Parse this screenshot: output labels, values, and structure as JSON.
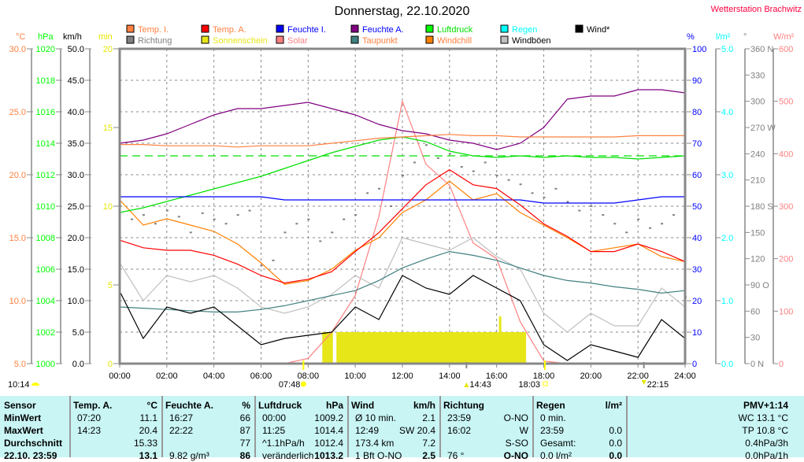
{
  "header": {
    "title": "Donnerstag, 22.10.2020",
    "station": "Wetterstation Brachwitz"
  },
  "legend": [
    {
      "label": "Temp. I.",
      "color": "#ff8040",
      "text_color": "#ff8040"
    },
    {
      "label": "Temp. A.",
      "color": "#ff0000",
      "text_color": "#ff8040"
    },
    {
      "label": "Feuchte I.",
      "color": "#0000ff",
      "text_color": "#0000ff"
    },
    {
      "label": "Feuchte A.",
      "color": "#800080",
      "text_color": "#0000ff"
    },
    {
      "label": "Luftdruck",
      "color": "#00ff00",
      "text_color": "#00e000"
    },
    {
      "label": "Regen",
      "color": "#00ffff",
      "text_color": "#00ffff"
    },
    {
      "label": "Wind*",
      "color": "#000000",
      "text_color": "#000000"
    },
    {
      "label": "Richtung",
      "color": "#808080",
      "text_color": "#808080"
    },
    {
      "label": "Sonnenschein",
      "color": "#e6e619",
      "text_color": "#e6e619"
    },
    {
      "label": "Solar",
      "color": "#ff8080",
      "text_color": "#ff8080"
    },
    {
      "label": "Taupunkt",
      "color": "#408080",
      "text_color": "#ff8040"
    },
    {
      "label": "Windchill",
      "color": "#ff8000",
      "text_color": "#ff8040"
    },
    {
      "label": "Windböen",
      "color": "#c0c0c0",
      "text_color": "#000000"
    }
  ],
  "markers": {
    "day_length": "10:14",
    "sunrise": "07:48",
    "moonrise": "14:43",
    "sunset": "18:03",
    "moonset": "22:15"
  },
  "chart_data": {
    "type": "line",
    "title": "Donnerstag, 22.10.2020",
    "x_ticks": [
      "00:00",
      "02:00",
      "04:00",
      "06:00",
      "08:00",
      "10:00",
      "12:00",
      "14:00",
      "16:00",
      "18:00",
      "20:00",
      "22:00",
      "24:00"
    ],
    "axes": {
      "celsius": {
        "unit": "°C",
        "ticks": [
          "30.0",
          "25.0",
          "20.0",
          "15.0",
          "10.0",
          "5.0"
        ],
        "range": [
          5,
          30
        ],
        "color": "#ff8040"
      },
      "hpa": {
        "unit": "hPa",
        "ticks": [
          "1020",
          "1018",
          "1016",
          "1014",
          "1012",
          "1010",
          "1008",
          "1006",
          "1004",
          "1002",
          "1000"
        ],
        "range": [
          1000,
          1020
        ],
        "color": "#00ff00"
      },
      "kmh": {
        "unit": "km/h",
        "ticks": [
          "50.0",
          "45.0",
          "40.0",
          "35.0",
          "30.0",
          "25.0",
          "20.0",
          "15.0",
          "10.0",
          "5.0",
          "0.0"
        ],
        "range": [
          0,
          50
        ],
        "color": "#000000"
      },
      "min": {
        "unit": "min",
        "ticks": [
          "20",
          "15",
          "10",
          "5",
          "0"
        ],
        "range": [
          0,
          20
        ],
        "color": "#e6e600"
      },
      "percent": {
        "unit": "%",
        "ticks": [
          "100",
          "90",
          "80",
          "70",
          "60",
          "50",
          "40",
          "30",
          "20",
          "10",
          "0"
        ],
        "range": [
          0,
          100
        ],
        "color": "#0000ff"
      },
      "rain": {
        "unit": "l/m²",
        "ticks": [
          "5.0",
          "4.0",
          "3.0",
          "2.0",
          "1.0",
          "0.0"
        ],
        "range": [
          0,
          5
        ],
        "color": "#00ffff"
      },
      "degree": {
        "unit": "°",
        "ticks": [
          "360 N",
          "330",
          "300",
          "270 W",
          "240",
          "210",
          "180 S",
          "150",
          "120",
          "90  O",
          "60",
          "30",
          "0   N"
        ],
        "range": [
          0,
          360
        ],
        "color": "#808080"
      },
      "solar": {
        "unit": "W/m²",
        "ticks": [
          "600",
          "500",
          "400",
          "300",
          "200",
          "100",
          "0"
        ],
        "range": [
          0,
          600
        ],
        "color": "#ff8080"
      }
    },
    "hourly_x": [
      0,
      1,
      2,
      3,
      4,
      5,
      6,
      7,
      8,
      9,
      10,
      11,
      12,
      13,
      14,
      15,
      16,
      17,
      18,
      19,
      20,
      21,
      22,
      23,
      24
    ],
    "series": [
      {
        "name": "Temp. I.",
        "axis": "celsius",
        "color": "#ff8040",
        "values": [
          22.4,
          22.4,
          22.3,
          22.3,
          22.3,
          22.2,
          22.3,
          22.3,
          22.3,
          22.5,
          22.7,
          22.9,
          23.0,
          23.1,
          23.2,
          23.1,
          23.1,
          23.0,
          23.0,
          23.0,
          23.0,
          23.0,
          23.1,
          23.1,
          23.1
        ]
      },
      {
        "name": "Temp. A.",
        "axis": "celsius",
        "color": "#ff0000",
        "values": [
          14.8,
          14.2,
          14.0,
          14.0,
          13.6,
          12.9,
          12.0,
          11.4,
          11.7,
          12.3,
          13.9,
          15.4,
          17.3,
          19.2,
          20.4,
          19.2,
          18.9,
          17.6,
          16.1,
          15.1,
          13.9,
          13.9,
          14.5,
          13.9,
          13.1
        ]
      },
      {
        "name": "Feuchte I.",
        "axis": "percent",
        "color": "#0000ff",
        "values": [
          53,
          53,
          53,
          53,
          53,
          53,
          53,
          52,
          52,
          52,
          52,
          52,
          52,
          52,
          52,
          52,
          52,
          52,
          51,
          51,
          51,
          51,
          52,
          53,
          53
        ]
      },
      {
        "name": "Feuchte A.",
        "axis": "percent",
        "color": "#800080",
        "values": [
          70,
          71,
          73,
          76,
          79,
          81,
          81,
          82,
          83,
          81,
          79,
          76,
          74,
          73,
          71,
          70,
          68,
          70,
          75,
          84,
          85,
          85,
          87,
          87,
          86
        ]
      },
      {
        "name": "Luftdruck",
        "axis": "hpa",
        "color": "#00e000",
        "values": [
          1009.6,
          1009.9,
          1010.3,
          1010.7,
          1011.1,
          1011.5,
          1011.9,
          1012.4,
          1012.9,
          1013.4,
          1013.8,
          1014.2,
          1014.4,
          1014.1,
          1013.5,
          1013.2,
          1013.1,
          1013.2,
          1013.1,
          1013.2,
          1013.1,
          1013.1,
          1013.0,
          1013.1,
          1013.2
        ]
      },
      {
        "name": "Taupunkt",
        "axis": "celsius",
        "color": "#408080",
        "values": [
          9.5,
          9.4,
          9.3,
          9.2,
          9.1,
          9.1,
          9.3,
          9.6,
          10.0,
          10.4,
          10.8,
          11.6,
          12.6,
          13.3,
          13.9,
          13.6,
          13.2,
          12.6,
          12.0,
          11.6,
          11.4,
          11.1,
          10.9,
          10.6,
          10.8
        ]
      },
      {
        "name": "Windchill",
        "axis": "celsius",
        "color": "#ff8000",
        "values": [
          18,
          16,
          16.5,
          16,
          15.5,
          14.5,
          13,
          11.3,
          11.6,
          12.5,
          14,
          15,
          17,
          18,
          19.5,
          18,
          18.5,
          17,
          16,
          15,
          13.9,
          14.2,
          14.5,
          13.5,
          13.1
        ]
      },
      {
        "name": "Windböen",
        "axis": "kmh",
        "color": "#c0c0c0",
        "values": [
          16,
          10,
          14,
          13,
          14,
          12,
          9,
          8,
          9,
          11,
          14,
          12,
          20,
          19,
          18,
          20,
          17,
          15,
          8,
          5,
          8,
          6,
          6,
          12,
          9
        ]
      },
      {
        "name": "Wind*",
        "axis": "kmh",
        "color": "#000000",
        "values": [
          11.5,
          4,
          9,
          8,
          9,
          6,
          3,
          4,
          4.5,
          5,
          9,
          7,
          14,
          12,
          11,
          14,
          12,
          10,
          3,
          0.5,
          3,
          2,
          1,
          7,
          4
        ]
      },
      {
        "name": "Solar",
        "axis": "solar",
        "color": "#ff8080",
        "values": [
          0,
          0,
          0,
          0,
          0,
          0,
          0,
          0,
          10,
          60,
          130,
          280,
          500,
          380,
          340,
          230,
          200,
          80,
          5,
          0,
          0,
          0,
          0,
          0,
          0
        ]
      }
    ],
    "richtung": {
      "axis": "degree",
      "color": "#808080",
      "x": [
        0,
        0.5,
        1,
        1.5,
        2,
        2.5,
        3,
        3.5,
        4,
        4.5,
        5,
        5.5,
        6,
        6.5,
        7,
        7.5,
        8,
        8.5,
        9,
        9.5,
        10,
        10.5,
        11,
        11.5,
        12,
        12.5,
        13,
        13.5,
        14,
        14.5,
        15,
        15.5,
        16,
        16.5,
        17,
        17.5,
        18,
        18.5,
        19,
        19.5,
        20,
        20.5,
        21,
        21.5,
        22,
        22.5,
        23,
        23.5,
        24
      ],
      "values": [
        180,
        165,
        170,
        160,
        175,
        168,
        150,
        172,
        165,
        160,
        170,
        175,
        112,
        118,
        150,
        160,
        165,
        140,
        150,
        165,
        170,
        195,
        200,
        180,
        215,
        230,
        250,
        235,
        240,
        225,
        220,
        230,
        215,
        210,
        205,
        195,
        190,
        200,
        185,
        175,
        180,
        170,
        160,
        150,
        165,
        155,
        160,
        170,
        76
      ]
    },
    "sunshine": {
      "axis": "min",
      "color": "#e6e619",
      "blocks": [
        {
          "from": 8.6,
          "to": 9.05,
          "min": 2
        },
        {
          "from": 9.2,
          "to": 17.25,
          "min": 2
        },
        {
          "from": 16.1,
          "to": 16.2,
          "min": 3
        }
      ]
    },
    "dashed_pressure_level": 1013.2
  },
  "table": {
    "sensor": {
      "header": "Sensor",
      "rows": [
        "MinWert",
        "MaxWert",
        "Durchschnitt",
        "22.10. 23:59"
      ]
    },
    "temp": {
      "header": "Temp. A.",
      "unit": "°C",
      "rows": [
        [
          "07:20",
          "11.1"
        ],
        [
          "14:23",
          "20.4"
        ],
        [
          "",
          "15.33"
        ],
        [
          "",
          "13.1"
        ]
      ]
    },
    "feuchte": {
      "header": "Feuchte A.",
      "unit": "%",
      "rows": [
        [
          "16:27",
          "66"
        ],
        [
          "22:22",
          "87"
        ],
        [
          "",
          "77"
        ],
        [
          "9.82 g/m³",
          "86"
        ]
      ]
    },
    "luftdruck": {
      "header": "Luftdruck",
      "unit": "hPa",
      "rows": [
        [
          "00:00",
          "1009.2"
        ],
        [
          "11:25",
          "1014.4"
        ],
        [
          "^1.1hPa/h",
          "1012.4"
        ],
        [
          "veränderlich",
          "1013.2"
        ]
      ]
    },
    "wind": {
      "header": "Wind",
      "unit": "km/h",
      "rows": [
        [
          "Ø 10 min.",
          "2.1"
        ],
        [
          "12:49",
          "SW 20.4"
        ],
        [
          "173.4 km",
          "7.2"
        ],
        [
          "1 Bft O-NO",
          "2.5"
        ]
      ]
    },
    "richtung": {
      "header": "Richtung",
      "rows": [
        [
          "23:59",
          "O-NO"
        ],
        [
          "16:02",
          "W"
        ],
        [
          "",
          "S-SO"
        ],
        [
          "76 °",
          "O-NO"
        ]
      ]
    },
    "regen": {
      "header": "Regen",
      "unit": "l/m²",
      "rows": [
        [
          "0 min.",
          ""
        ],
        [
          "23:59",
          "0.0"
        ],
        [
          "Gesamt:",
          "0.0"
        ],
        [
          "0.0 l/m²",
          "0.0"
        ]
      ]
    },
    "pmv": {
      "header": "PMV+1:14",
      "rows": [
        "WC 13.1 °C",
        "TP 10.8 °C",
        "0.4hPa/3h",
        "0.0hPa/1h"
      ]
    }
  }
}
